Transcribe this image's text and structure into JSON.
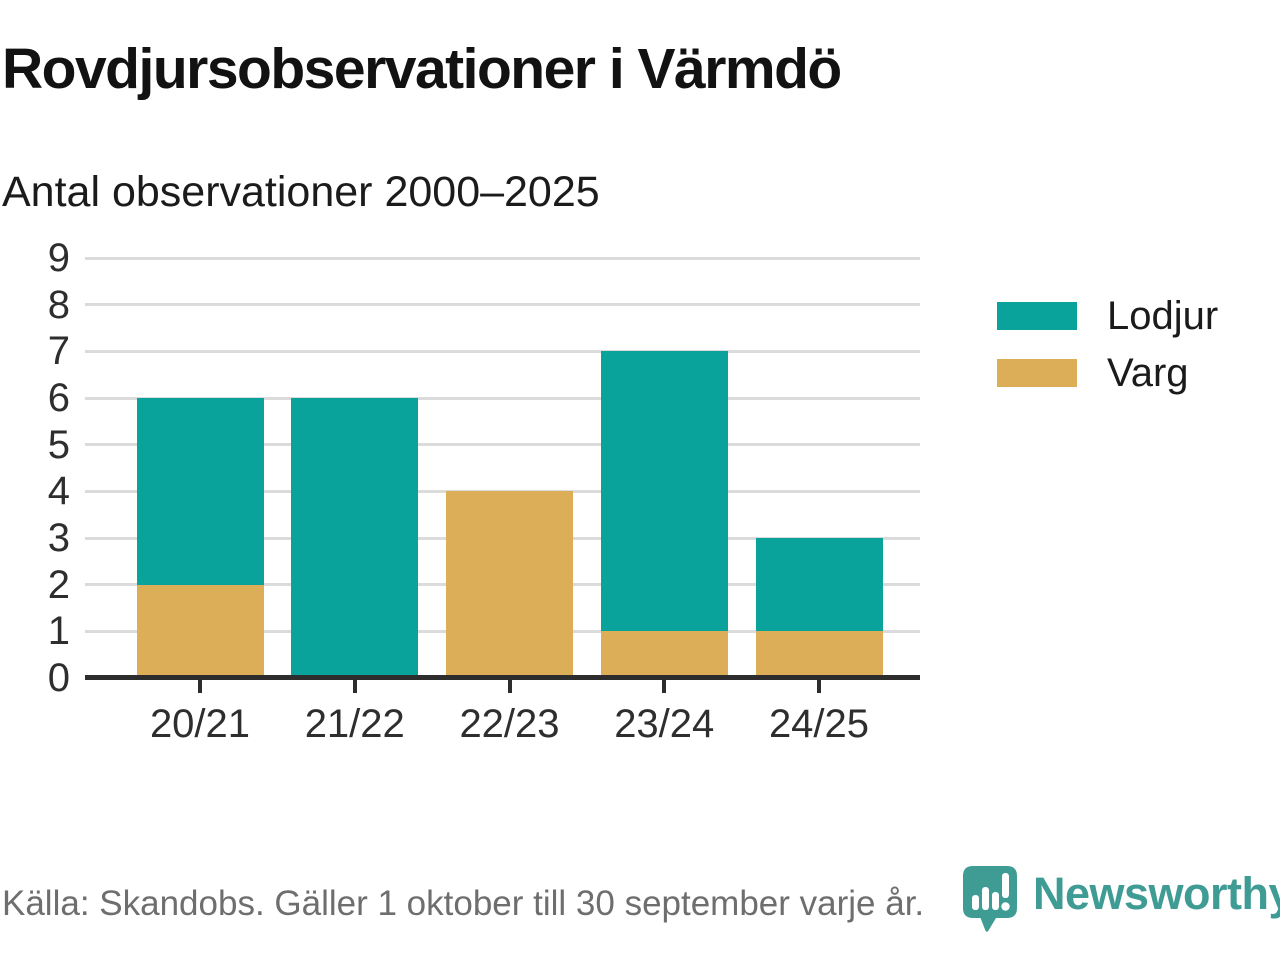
{
  "header": {
    "title": "Rovdjursobservationer i Värmdö",
    "subtitle": "Antal observationer 2000–2025"
  },
  "chart_data": {
    "type": "bar",
    "stacked": true,
    "title": "Rovdjursobservationer i Värmdö",
    "subtitle": "Antal observationer 2000–2025",
    "categories": [
      "20/21",
      "21/22",
      "22/23",
      "23/24",
      "24/25"
    ],
    "series": [
      {
        "name": "Varg",
        "color": "#DCAE58",
        "values": [
          2,
          0,
          4,
          1,
          1
        ]
      },
      {
        "name": "Lodjur",
        "color": "#0AA39C",
        "values": [
          4,
          6,
          0,
          6,
          2
        ]
      }
    ],
    "xlabel": "",
    "ylabel": "",
    "ylim": [
      0,
      9
    ],
    "yticks": [
      0,
      1,
      2,
      3,
      4,
      5,
      6,
      7,
      8,
      9
    ],
    "grid": "horizontal",
    "legend_position": "right",
    "legend": [
      {
        "label": "Lodjur",
        "color": "#0AA39C"
      },
      {
        "label": "Varg",
        "color": "#DCAE58"
      }
    ]
  },
  "footer": {
    "source": "Källa: Skandobs. Gäller 1 oktober till 30 september varje år.",
    "brand": "Newsworthy"
  },
  "colors": {
    "lodjur": "#0AA39C",
    "varg": "#DCAE58",
    "brand_teal": "#3F9C95",
    "grid": "#DBDBDB",
    "axis": "#2D2D2D",
    "title_text": "#121212",
    "muted_text": "#6E6E6E"
  }
}
